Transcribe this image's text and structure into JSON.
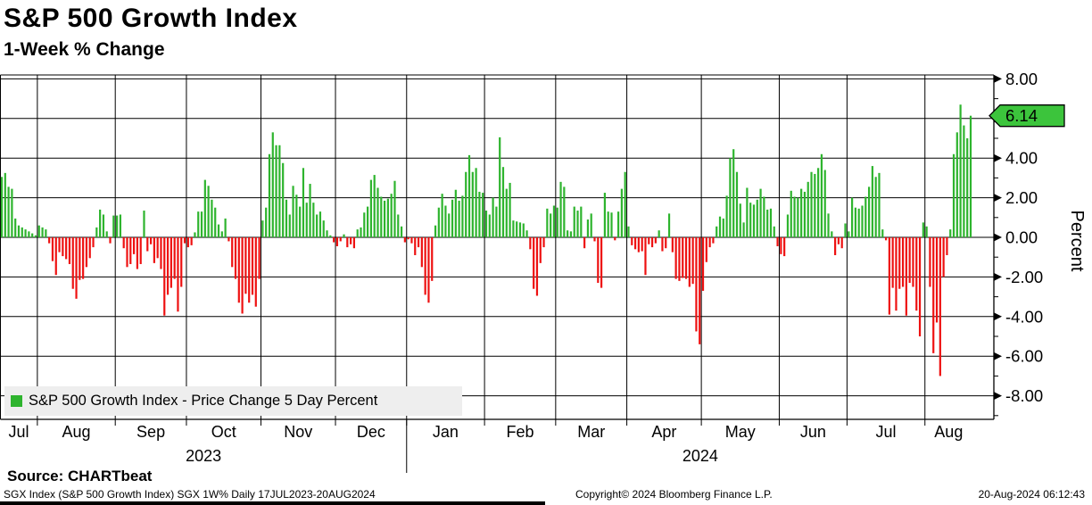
{
  "header": {
    "title": "S&P 500 Growth Index",
    "subtitle": "1-Week % Change"
  },
  "legend": {
    "label": "S&P 500 Growth Index - Price Change 5 Day Percent",
    "swatch_color": "#2eb42e"
  },
  "y_axis": {
    "title": "Percent",
    "major_tick_labels": [
      "8.00",
      "4.00",
      "2.00",
      "0.00",
      "-2.00",
      "-4.00",
      "-6.00",
      "-8.00"
    ]
  },
  "last_value_marker": {
    "label": "6.14",
    "fill": "#3cc43c"
  },
  "x_axis": {
    "month_labels": [
      "Jul",
      "Aug",
      "Sep",
      "Oct",
      "Nov",
      "Dec",
      "Jan",
      "Feb",
      "Mar",
      "Apr",
      "May",
      "Jun",
      "Jul",
      "Aug"
    ],
    "year_labels": [
      "2023",
      "2024"
    ]
  },
  "footer": {
    "source": "Source: CHARTbeat",
    "left": "SGX Index (S&P 500 Growth Index) SGX 1W%  Daily 17JUL2023-20AUG2024",
    "center": "Copyright© 2024 Bloomberg Finance L.P.",
    "right": "20-Aug-2024 06:12:43"
  },
  "chart_data": {
    "type": "bar",
    "title": "S&P 500 Growth Index",
    "subtitle": "1-Week % Change",
    "ylabel": "Percent",
    "ylim": [
      -9.2,
      8.2
    ],
    "gridline_step": 2,
    "grid": "on",
    "legend_position": "bottom-left",
    "last_value": 6.14,
    "colors": {
      "positive": "#2eb42e",
      "negative": "#ee1111",
      "marker": "#3cc43c"
    },
    "months": [
      {
        "label": "Jul",
        "year": "2023",
        "count": 11
      },
      {
        "label": "Aug",
        "year": "2023",
        "count": 23
      },
      {
        "label": "Sep",
        "year": "2023",
        "count": 21
      },
      {
        "label": "Oct",
        "year": "2023",
        "count": 22
      },
      {
        "label": "Nov",
        "year": "2023",
        "count": 22
      },
      {
        "label": "Dec",
        "year": "2023",
        "count": 21
      },
      {
        "label": "Jan",
        "year": "2024",
        "count": 23
      },
      {
        "label": "Feb",
        "year": "2024",
        "count": 21
      },
      {
        "label": "Mar",
        "year": "2024",
        "count": 21
      },
      {
        "label": "Apr",
        "year": "2024",
        "count": 22
      },
      {
        "label": "May",
        "year": "2024",
        "count": 23
      },
      {
        "label": "Jun",
        "year": "2024",
        "count": 20
      },
      {
        "label": "Jul",
        "year": "2024",
        "count": 23
      },
      {
        "label": "Aug",
        "year": "2024",
        "count": 14
      }
    ],
    "series": [
      {
        "name": "S&P 500 Growth Index - Price Change 5 Day Percent",
        "values": [
          3.05,
          3.25,
          2.55,
          2.45,
          0.95,
          0.6,
          0.5,
          0.4,
          0.3,
          0.2,
          0.1,
          0.6,
          0.5,
          0.4,
          -0.3,
          -1.2,
          -1.9,
          -0.75,
          -0.95,
          -1.1,
          -1.35,
          -2.6,
          -3.1,
          -2.15,
          -2.1,
          -1.5,
          -1.05,
          -0.5,
          0.5,
          1.4,
          1.15,
          0.3,
          -0.3,
          1.1,
          1.1,
          1.15,
          -0.55,
          -1.5,
          -1.35,
          -0.85,
          -1.6,
          -1.35,
          1.35,
          -0.7,
          -0.35,
          -1.3,
          -1.05,
          -1.6,
          -3.95,
          -2.9,
          -2.55,
          -2.1,
          -3.75,
          -2.5,
          -0.3,
          -0.5,
          -0.4,
          0.25,
          1.3,
          1.3,
          2.9,
          2.6,
          1.9,
          1.5,
          0.65,
          0.3,
          0.95,
          -0.2,
          -1.5,
          -2.1,
          -3.3,
          -3.85,
          -2.85,
          -3.3,
          -2.9,
          -3.5,
          -2.1,
          0.85,
          1.5,
          4.2,
          5.3,
          4.65,
          4.65,
          3.75,
          1.9,
          1.15,
          2.6,
          2.15,
          1.55,
          3.5,
          1.75,
          2.7,
          1.75,
          1.15,
          1.3,
          0.85,
          0.35,
          0.1,
          -0.25,
          -0.45,
          -0.2,
          0.15,
          -0.5,
          -0.35,
          -0.55,
          0.4,
          0.5,
          1.25,
          1.55,
          2.9,
          3.15,
          2.5,
          2.05,
          1.85,
          1.95,
          2.2,
          2.85,
          1.15,
          0.55,
          -0.25,
          -0.1,
          -0.3,
          -0.9,
          -0.5,
          -1.5,
          -2.9,
          -3.3,
          -2.2,
          0.6,
          1.5,
          2.2,
          1.6,
          1.2,
          1.9,
          2.4,
          1.85,
          2.1,
          3.3,
          4.15,
          3.3,
          3.5,
          2.3,
          2.25,
          1.35,
          1.15,
          2.0,
          1.55,
          5.05,
          3.55,
          2.45,
          2.75,
          0.85,
          0.8,
          0.75,
          0.7,
          0.35,
          -0.6,
          -2.6,
          -2.95,
          -1.3,
          -0.5,
          1.45,
          1.2,
          1.6,
          1.5,
          2.8,
          2.55,
          0.35,
          0.3,
          1.55,
          1.35,
          1.55,
          -0.55,
          0.9,
          1.2,
          -0.2,
          -2.3,
          -2.55,
          2.25,
          1.3,
          1.25,
          -0.15,
          1.3,
          2.45,
          3.3,
          0.55,
          -0.4,
          -0.6,
          -0.75,
          -0.7,
          -1.9,
          -0.35,
          -0.5,
          -0.3,
          0.35,
          -0.7,
          -0.55,
          1.2,
          -0.75,
          -2.1,
          -2.2,
          -2.05,
          -2.1,
          -2.5,
          -2.35,
          -4.75,
          -5.4,
          -2.7,
          -1.25,
          -0.5,
          -0.3,
          0.55,
          1.05,
          0.95,
          2.1,
          4.0,
          4.45,
          3.3,
          1.7,
          0.75,
          2.5,
          1.75,
          1.65,
          1.9,
          2.45,
          2.05,
          1.4,
          1.45,
          0.55,
          -0.45,
          -0.85,
          -0.95,
          1.15,
          2.35,
          2.05,
          2.0,
          2.45,
          2.3,
          2.8,
          3.3,
          3.2,
          3.5,
          4.2,
          3.4,
          1.2,
          0.3,
          -0.9,
          -0.35,
          -0.55,
          0.7,
          0.3,
          2.0,
          1.5,
          1.45,
          1.6,
          2.05,
          2.55,
          3.6,
          3.05,
          3.25,
          0.4,
          -0.15,
          -3.9,
          -2.55,
          -3.7,
          -2.6,
          -2.5,
          -3.95,
          -2.3,
          -2.5,
          -3.7,
          -5.0,
          0.75,
          0.55,
          -2.5,
          -5.85,
          -4.3,
          -7.0,
          -2.0,
          -0.9,
          0.4,
          4.2,
          5.3,
          6.7,
          5.65,
          5.0,
          6.14
        ]
      }
    ]
  }
}
